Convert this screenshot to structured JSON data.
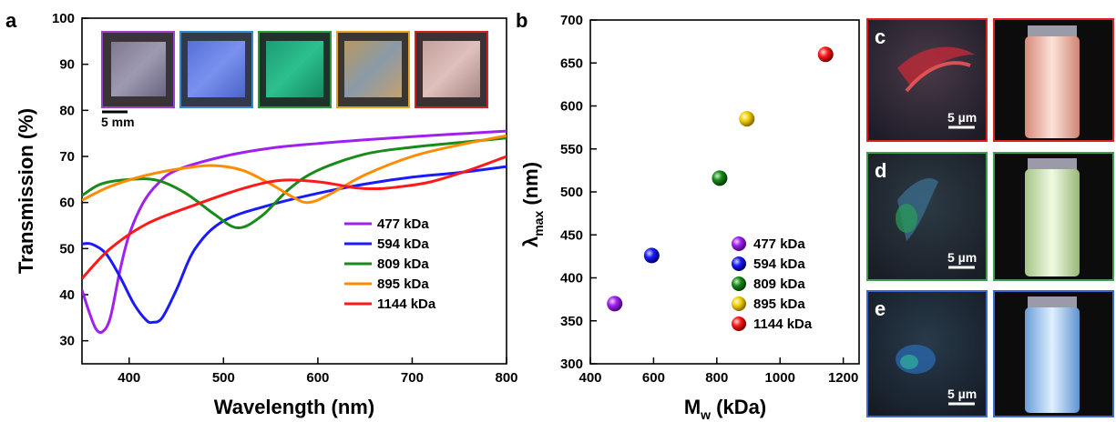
{
  "panel_letters": {
    "a": "a",
    "b": "b",
    "c": "c",
    "d": "d",
    "e": "e"
  },
  "scale_bars": {
    "inset": "5 mm",
    "micro_c": "5 µm",
    "micro_d": "5 µm",
    "micro_e": "5 µm"
  },
  "colors": {
    "477": "#a020f0",
    "594": "#1a1aff",
    "809": "#1a8a1a",
    "895": "#ff8c00",
    "1144": "#ff1a1a",
    "dot_895": "#f2d000"
  },
  "chart_data": [
    {
      "type": "line",
      "xlabel": "Wavelength (nm)",
      "ylabel": "Transmission (%)",
      "xlim": [
        350,
        800
      ],
      "ylim": [
        25,
        100
      ],
      "xticks": [
        400,
        500,
        600,
        700,
        800
      ],
      "yticks": [
        30,
        40,
        50,
        60,
        70,
        80,
        90,
        100
      ],
      "legend_position": "lower-right",
      "series": [
        {
          "name": "477 kDa",
          "color": "#a020f0",
          "points": [
            [
              350,
              41
            ],
            [
              358,
              36
            ],
            [
              365,
              32.5
            ],
            [
              372,
              32
            ],
            [
              380,
              35
            ],
            [
              390,
              45
            ],
            [
              400,
              53
            ],
            [
              415,
              60
            ],
            [
              430,
              64
            ],
            [
              450,
              67
            ],
            [
              500,
              70
            ],
            [
              550,
              71.8
            ],
            [
              600,
              72.8
            ],
            [
              650,
              73.6
            ],
            [
              700,
              74.3
            ],
            [
              750,
              74.9
            ],
            [
              800,
              75.5
            ]
          ]
        },
        {
          "name": "594 kDa",
          "color": "#1a1aff",
          "points": [
            [
              350,
              51
            ],
            [
              360,
              51
            ],
            [
              375,
              49
            ],
            [
              390,
              44
            ],
            [
              405,
              38
            ],
            [
              418,
              34.5
            ],
            [
              425,
              34
            ],
            [
              435,
              35
            ],
            [
              450,
              41
            ],
            [
              470,
              50
            ],
            [
              500,
              56
            ],
            [
              550,
              59.5
            ],
            [
              600,
              62
            ],
            [
              650,
              64
            ],
            [
              700,
              65.5
            ],
            [
              750,
              66.5
            ],
            [
              800,
              67.8
            ]
          ]
        },
        {
          "name": "809 kDa",
          "color": "#1a8a1a",
          "points": [
            [
              350,
              61.5
            ],
            [
              370,
              64
            ],
            [
              400,
              65
            ],
            [
              430,
              64.8
            ],
            [
              460,
              62
            ],
            [
              490,
              57.5
            ],
            [
              515,
              54.5
            ],
            [
              540,
              57
            ],
            [
              570,
              63
            ],
            [
              600,
              67
            ],
            [
              650,
              70.5
            ],
            [
              700,
              72
            ],
            [
              750,
              73
            ],
            [
              800,
              74
            ]
          ]
        },
        {
          "name": "895 kDa",
          "color": "#ff8c00",
          "points": [
            [
              350,
              60.5
            ],
            [
              380,
              63.5
            ],
            [
              420,
              66
            ],
            [
              460,
              67.5
            ],
            [
              490,
              68
            ],
            [
              520,
              67
            ],
            [
              550,
              64
            ],
            [
              575,
              61
            ],
            [
              590,
              60
            ],
            [
              610,
              61.5
            ],
            [
              650,
              66
            ],
            [
              700,
              70
            ],
            [
              750,
              72.5
            ],
            [
              800,
              74.5
            ]
          ]
        },
        {
          "name": "1144 kDa",
          "color": "#ff1a1a",
          "points": [
            [
              350,
              43.5
            ],
            [
              380,
              50
            ],
            [
              420,
              55.5
            ],
            [
              470,
              59.5
            ],
            [
              520,
              63
            ],
            [
              560,
              64.8
            ],
            [
              600,
              64.5
            ],
            [
              640,
              63.2
            ],
            [
              665,
              63
            ],
            [
              690,
              63.5
            ],
            [
              720,
              64.5
            ],
            [
              760,
              67
            ],
            [
              800,
              70
            ]
          ]
        }
      ]
    },
    {
      "type": "scatter",
      "xlabel": "M",
      "xlabel_sub": "w",
      "xlabel_unit": " (kDa)",
      "ylabel": "λ",
      "ylabel_sub": "max",
      "ylabel_unit": " (nm)",
      "xlim": [
        400,
        1250
      ],
      "ylim": [
        300,
        700
      ],
      "xticks": [
        400,
        600,
        800,
        1000,
        1200
      ],
      "yticks": [
        300,
        350,
        400,
        450,
        500,
        550,
        600,
        650,
        700
      ],
      "legend_position": "lower-right",
      "points": [
        {
          "name": "477 kDa",
          "x": 477,
          "y": 370,
          "color": "#a020f0"
        },
        {
          "name": "594 kDa",
          "x": 594,
          "y": 426,
          "color": "#1a1aff"
        },
        {
          "name": "809 kDa",
          "x": 809,
          "y": 516,
          "color": "#1a8a1a"
        },
        {
          "name": "895 kDa",
          "x": 895,
          "y": 585,
          "color": "#f2d000"
        },
        {
          "name": "1144 kDa",
          "x": 1144,
          "y": 660,
          "color": "#ff1a1a"
        }
      ]
    }
  ]
}
